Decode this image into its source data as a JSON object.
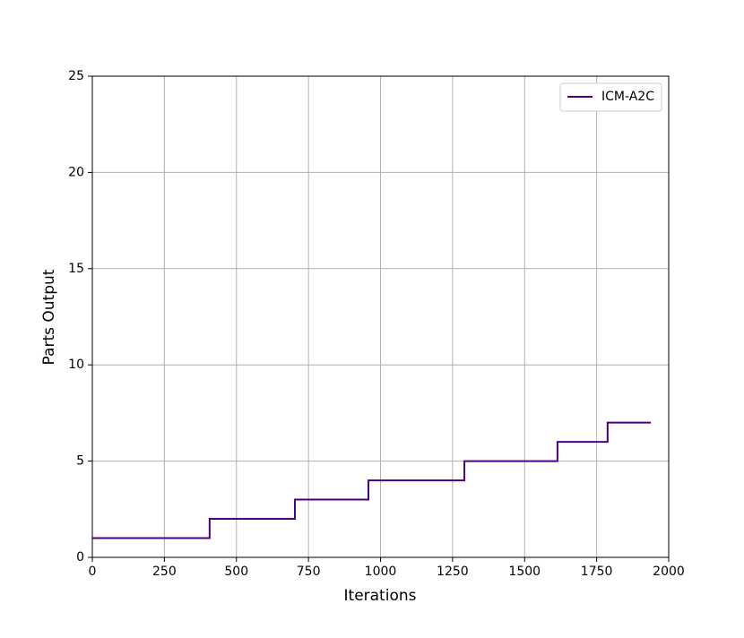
{
  "chart_data": {
    "type": "line",
    "x_label": "Iterations",
    "y_label": "Parts Output",
    "x": [
      0,
      407,
      407,
      703,
      703,
      958,
      958,
      1291,
      1291,
      1614,
      1614,
      1788,
      1788,
      1938
    ],
    "series": [
      {
        "name": "ICM-A2C",
        "color": "#4b0082",
        "values": [
          1,
          1,
          2,
          2,
          3,
          3,
          4,
          4,
          5,
          5,
          6,
          6,
          7,
          7
        ]
      }
    ],
    "xlim": [
      0,
      2000
    ],
    "xticks": [
      0,
      250,
      500,
      750,
      1000,
      1250,
      1500,
      1750,
      2000
    ],
    "ylim": [
      0,
      25
    ],
    "yticks": [
      0,
      5,
      10,
      15,
      20,
      25
    ],
    "grid": true,
    "legend": "upper right"
  }
}
